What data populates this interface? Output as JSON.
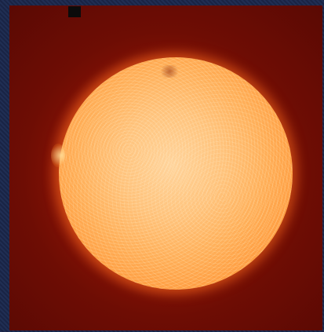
{
  "image": {
    "subject_icon": "sun-icon",
    "colors": {
      "frame": "#1a2547",
      "background_red": "#8a1406",
      "disk_center": "#ffd39a",
      "disk_edge": "#e4661a",
      "corona": "#ff7828"
    }
  }
}
